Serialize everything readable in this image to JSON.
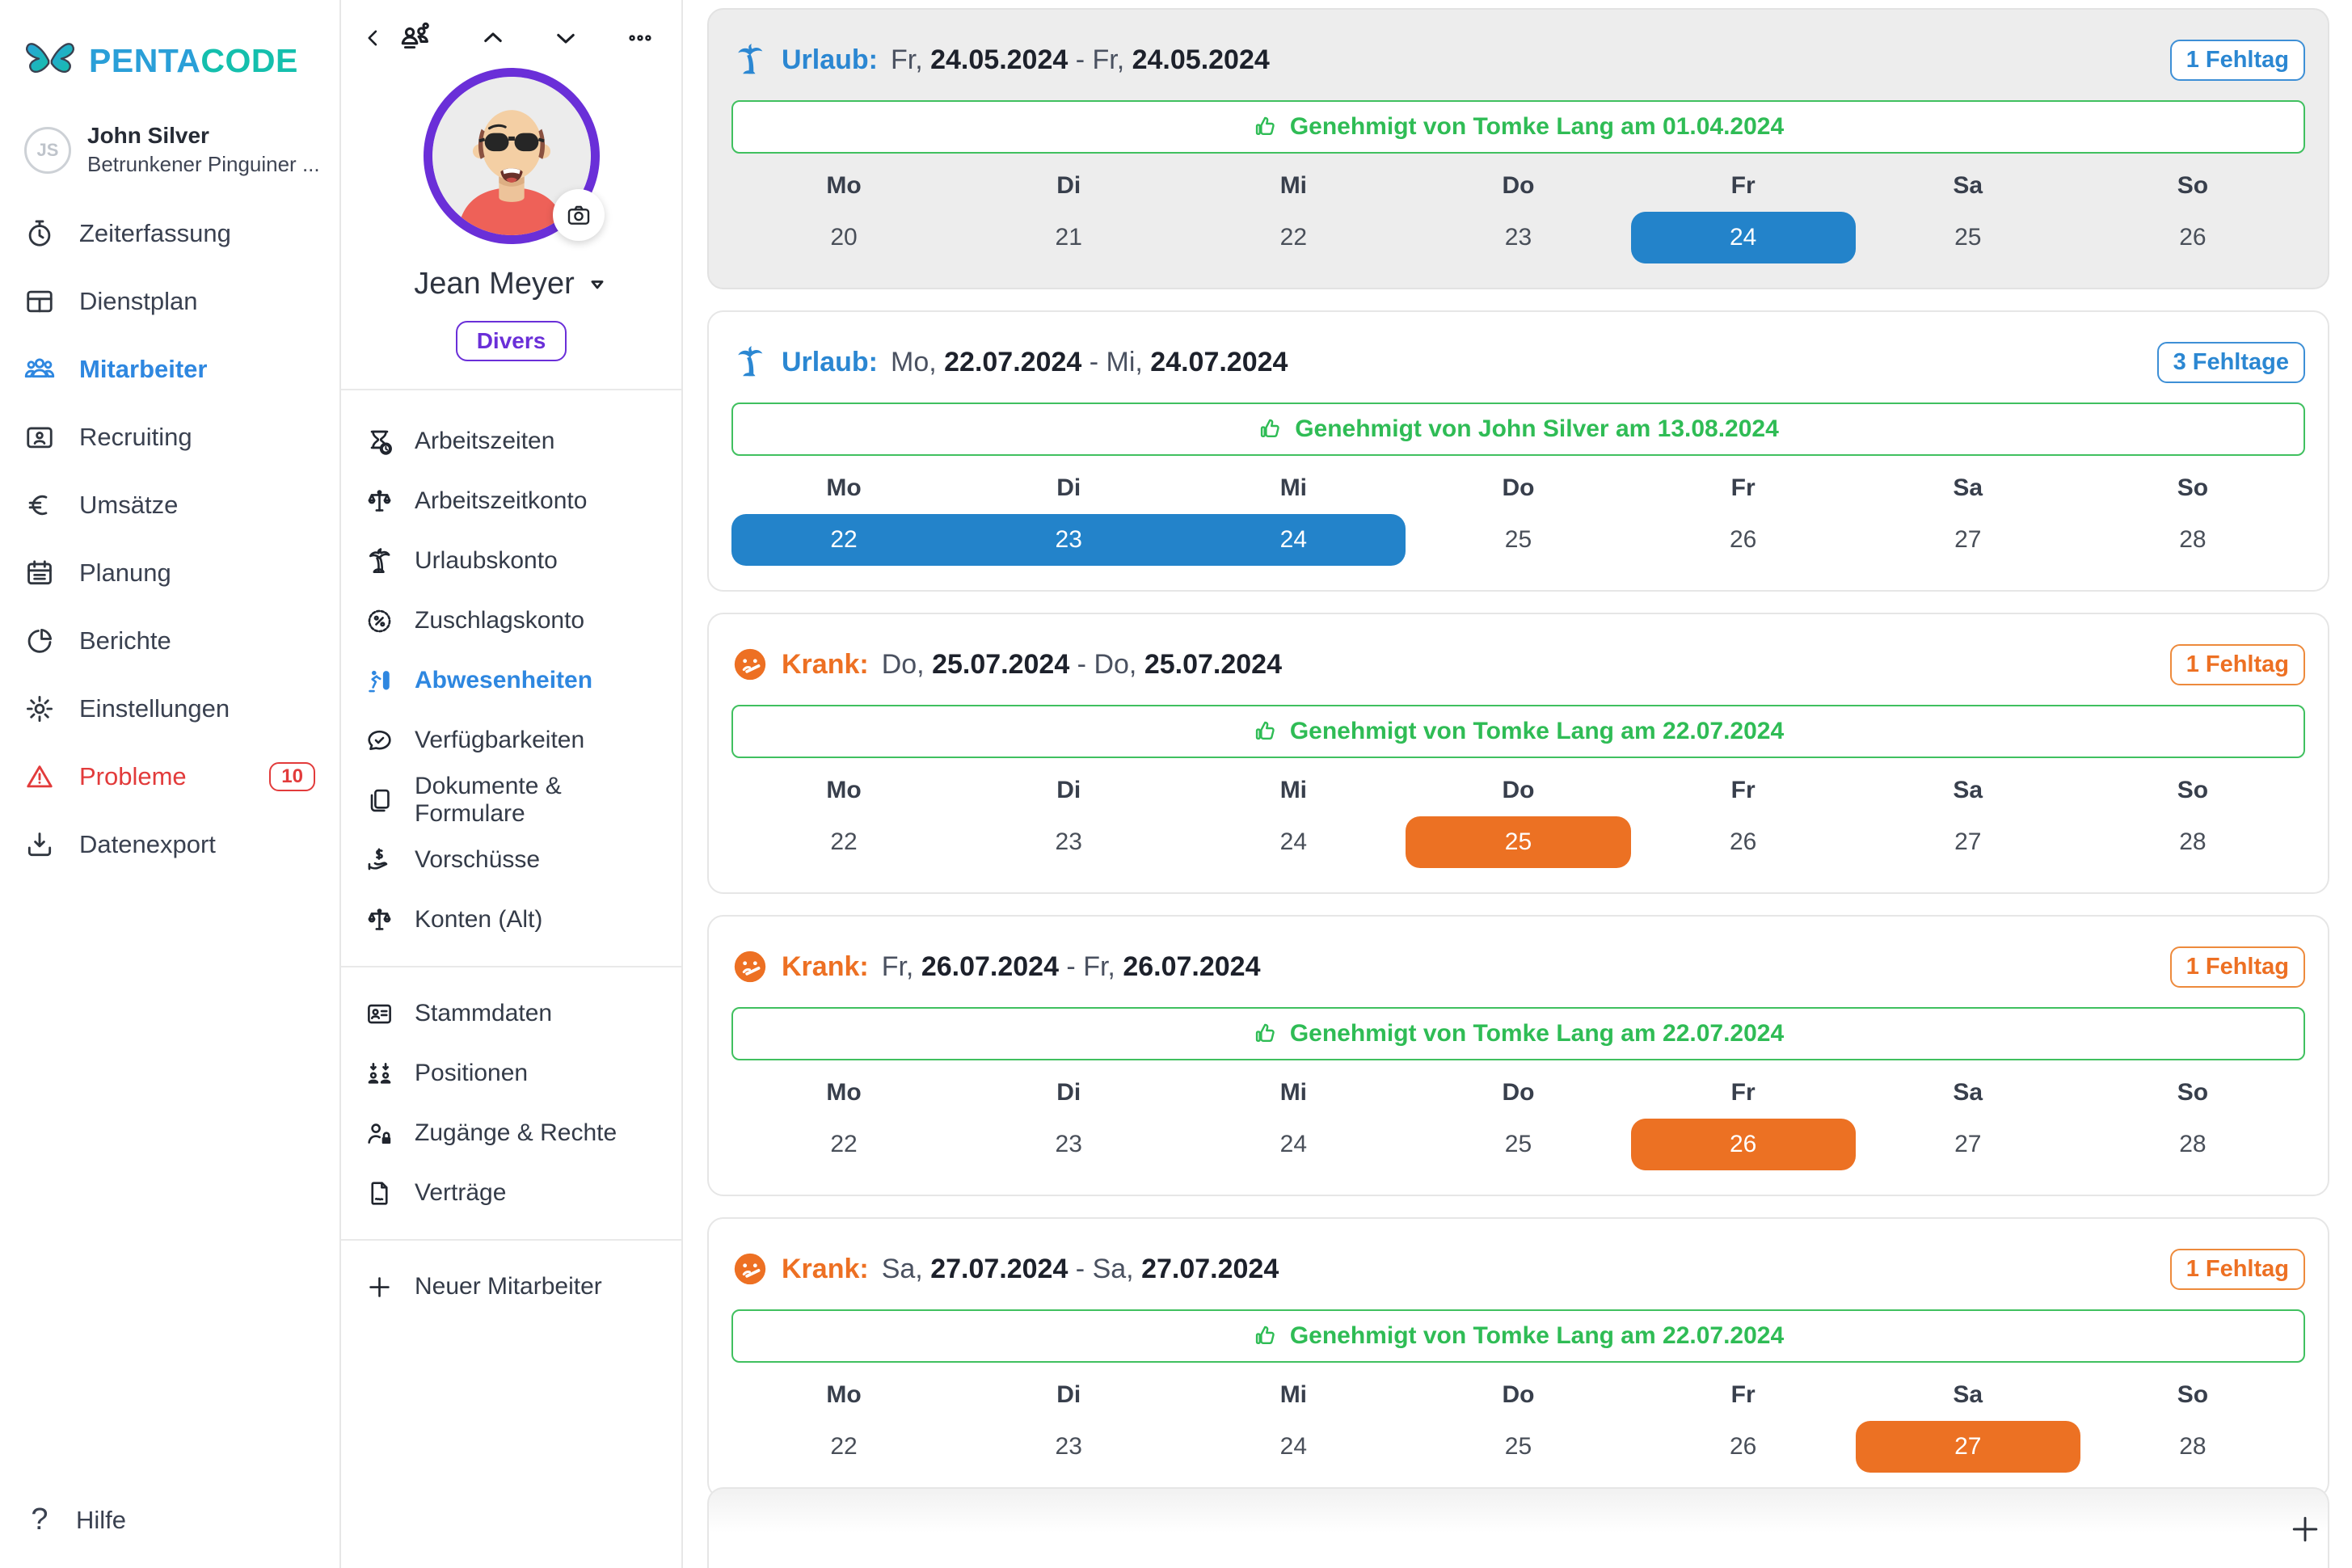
{
  "brand": {
    "name_primary": "PENTA",
    "name_secondary": "CODE",
    "logo_icon": "butterfly-logo"
  },
  "account": {
    "initials": "JS",
    "name": "John Silver",
    "subtitle": "Betrunkener Pinguiner ..."
  },
  "sidebar": {
    "items": [
      {
        "id": "zeiterfassung",
        "label": "Zeiterfassung",
        "icon": "stopwatch"
      },
      {
        "id": "dienstplan",
        "label": "Dienstplan",
        "icon": "schedule-grid"
      },
      {
        "id": "mitarbeiter",
        "label": "Mitarbeiter",
        "icon": "people",
        "active": true
      },
      {
        "id": "recruiting",
        "label": "Recruiting",
        "icon": "id-card"
      },
      {
        "id": "umsaetze",
        "label": "Umsätze",
        "icon": "euro"
      },
      {
        "id": "planung",
        "label": "Planung",
        "icon": "calendar"
      },
      {
        "id": "berichte",
        "label": "Berichte",
        "icon": "pie-chart"
      },
      {
        "id": "einstellungen",
        "label": "Einstellungen",
        "icon": "gear"
      },
      {
        "id": "probleme",
        "label": "Probleme",
        "icon": "warning",
        "badge": "10",
        "danger": true
      },
      {
        "id": "datenexport",
        "label": "Datenexport",
        "icon": "download"
      }
    ],
    "help_label": "Hilfe"
  },
  "employee_panel": {
    "name": "Jean Meyer",
    "gender_badge": "Divers",
    "header_icons": [
      "back-chevron",
      "team",
      "chevron-up",
      "chevron-down",
      "more-dots"
    ],
    "avatar_badge_icon": "camera",
    "nav": [
      {
        "id": "arbeitszeiten",
        "label": "Arbeitszeiten",
        "icon": "hourglass-clock"
      },
      {
        "id": "arbeitszeitkonto",
        "label": "Arbeitszeitkonto",
        "icon": "scales"
      },
      {
        "id": "urlaubskonto",
        "label": "Urlaubskonto",
        "icon": "palm-tree"
      },
      {
        "id": "zuschlagskonto",
        "label": "Zuschlagskonto",
        "icon": "percent-badge"
      },
      {
        "id": "abwesenheiten",
        "label": "Abwesenheiten",
        "icon": "absence-runner",
        "active": true
      },
      {
        "id": "verfuegbarkeiten",
        "label": "Verfügbarkeiten",
        "icon": "chat-check"
      },
      {
        "id": "dokumente-formulare",
        "label": "Dokumente & Formulare",
        "icon": "documents"
      },
      {
        "id": "vorschuesse",
        "label": "Vorschüsse",
        "icon": "hand-dollar"
      },
      {
        "id": "konten-alt",
        "label": "Konten (Alt)",
        "icon": "scales",
        "divider_after": true
      },
      {
        "id": "stammdaten",
        "label": "Stammdaten",
        "icon": "contact-card"
      },
      {
        "id": "positionen",
        "label": "Positionen",
        "icon": "people-arrows"
      },
      {
        "id": "zugaenge-rechte",
        "label": "Zugänge & Rechte",
        "icon": "person-lock"
      },
      {
        "id": "vertraege",
        "label": "Verträge",
        "icon": "contract",
        "divider_after": true
      },
      {
        "id": "neuer-mitarbeiter",
        "label": "Neuer Mitarbeiter",
        "icon": "plus"
      }
    ]
  },
  "absences": {
    "weekday_headers": [
      "Mo",
      "Di",
      "Mi",
      "Do",
      "Fr",
      "Sa",
      "So"
    ],
    "approved_icon": "thumbs-up",
    "cards": [
      {
        "type": "urlaub",
        "type_label": "Urlaub:",
        "icon": "palm-tree",
        "accent": "blue",
        "start_day": "Fr",
        "start_date": "24.05.2024",
        "end_day": "Fr",
        "end_date": "24.05.2024",
        "badge": "1 Fehltag",
        "approval": "Genehmigt von Tomke Lang am 01.04.2024",
        "days": [
          "20",
          "21",
          "22",
          "23",
          "24",
          "25",
          "26"
        ],
        "highlight_start": 4,
        "highlight_end": 4,
        "selected": true
      },
      {
        "type": "urlaub",
        "type_label": "Urlaub:",
        "icon": "palm-tree",
        "accent": "blue",
        "start_day": "Mo",
        "start_date": "22.07.2024",
        "end_day": "Mi",
        "end_date": "24.07.2024",
        "badge": "3 Fehltage",
        "approval": "Genehmigt von John Silver am 13.08.2024",
        "days": [
          "22",
          "23",
          "24",
          "25",
          "26",
          "27",
          "28"
        ],
        "highlight_start": 0,
        "highlight_end": 2
      },
      {
        "type": "krank",
        "type_label": "Krank:",
        "icon": "sick-face",
        "accent": "orange",
        "start_day": "Do",
        "start_date": "25.07.2024",
        "end_day": "Do",
        "end_date": "25.07.2024",
        "badge": "1 Fehltag",
        "approval": "Genehmigt von Tomke Lang am 22.07.2024",
        "days": [
          "22",
          "23",
          "24",
          "25",
          "26",
          "27",
          "28"
        ],
        "highlight_start": 3,
        "highlight_end": 3
      },
      {
        "type": "krank",
        "type_label": "Krank:",
        "icon": "sick-face",
        "accent": "orange",
        "start_day": "Fr",
        "start_date": "26.07.2024",
        "end_day": "Fr",
        "end_date": "26.07.2024",
        "badge": "1 Fehltag",
        "approval": "Genehmigt von Tomke Lang am 22.07.2024",
        "days": [
          "22",
          "23",
          "24",
          "25",
          "26",
          "27",
          "28"
        ],
        "highlight_start": 4,
        "highlight_end": 4
      },
      {
        "type": "krank",
        "type_label": "Krank:",
        "icon": "sick-face",
        "accent": "orange",
        "start_day": "Sa",
        "start_date": "27.07.2024",
        "end_day": "Sa",
        "end_date": "27.07.2024",
        "badge": "1 Fehltag",
        "approval": "Genehmigt von Tomke Lang am 22.07.2024",
        "days": [
          "22",
          "23",
          "24",
          "25",
          "26",
          "27",
          "28"
        ],
        "highlight_start": 5,
        "highlight_end": 5
      }
    ],
    "add_button_icon": "plus"
  },
  "colors": {
    "accent_blue": "#2b87d2",
    "accent_orange": "#ed7023",
    "approval_green": "#2fbc55",
    "danger_red": "#e23b3b",
    "profile_purple": "#6a2fd8",
    "day_pill_blue": "#2383ca",
    "day_pill_orange": "#ec7123",
    "brand_blue": "#2a9fd8",
    "brand_teal": "#14bfad"
  },
  "icons_unicode": {
    "butterfly-logo": "🦋",
    "stopwatch": "⏱",
    "schedule-grid": "▦",
    "people": "👥",
    "id-card": "🪪",
    "euro": "€",
    "calendar": "📅",
    "pie-chart": "◔",
    "gear": "⚙",
    "warning": "⚠",
    "download": "⤓",
    "help": "?",
    "back-chevron": "‹",
    "team": "👥",
    "chevron-up": "⌃",
    "chevron-down": "⌄",
    "more-dots": "…",
    "camera": "📷",
    "caret-down": "▽",
    "hourglass-clock": "⏳",
    "scales": "⚖",
    "palm-tree": "🌴",
    "percent-badge": "%",
    "absence-runner": "🏃",
    "chat-check": "💬",
    "documents": "🗐",
    "hand-dollar": "💲",
    "contact-card": "🪪",
    "people-arrows": "⇅",
    "person-lock": "🔐",
    "contract": "📄",
    "plus": "+",
    "thumbs-up": "👍",
    "sick-face": "🤒"
  }
}
